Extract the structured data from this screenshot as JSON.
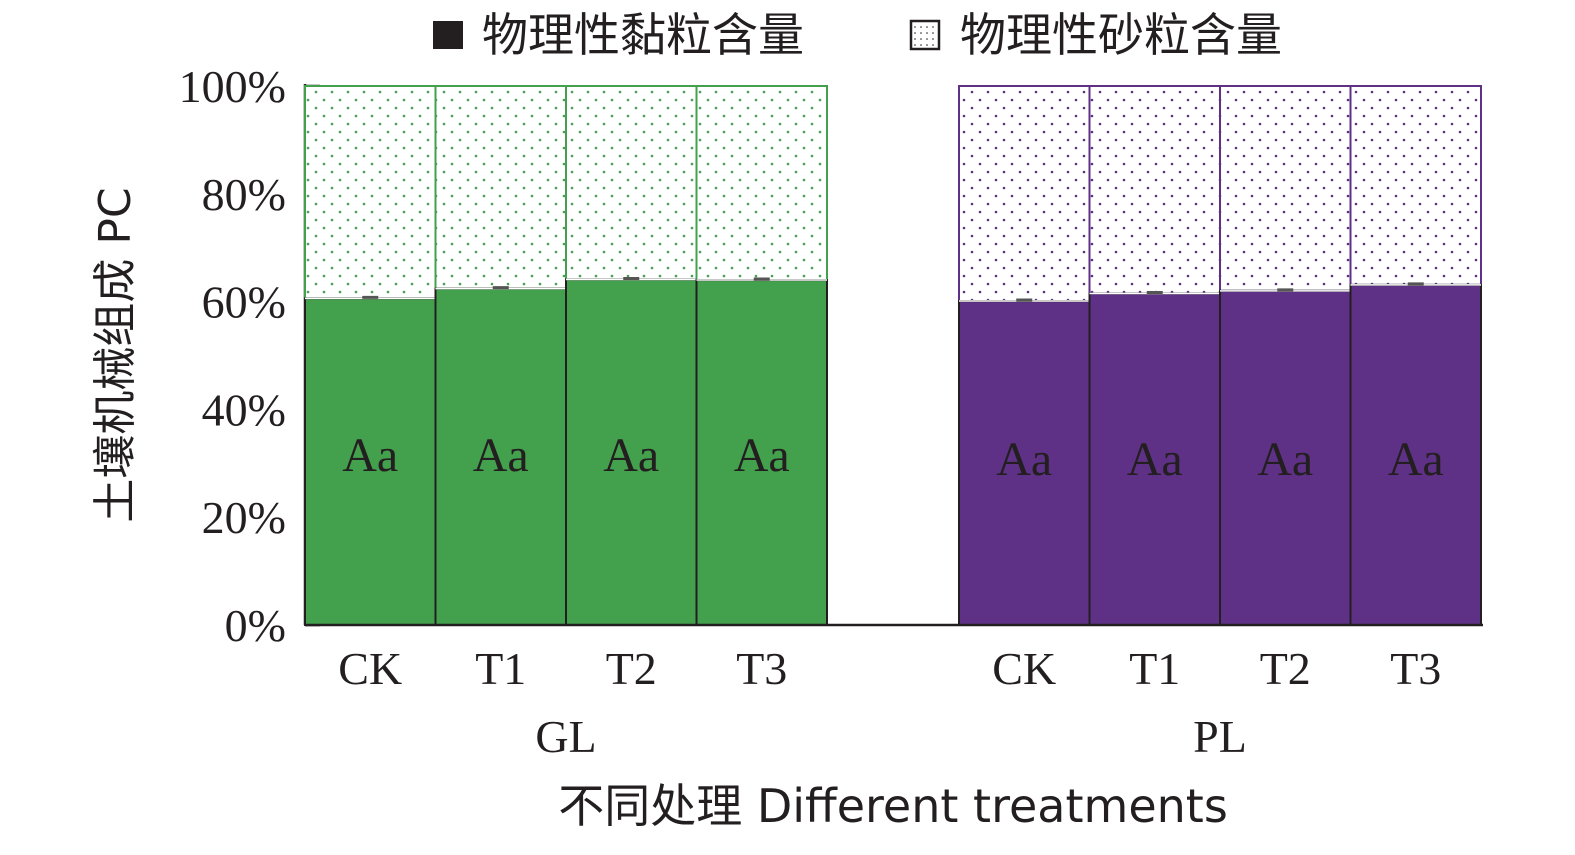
{
  "chart_data": {
    "type": "bar",
    "stacked": true,
    "percent": true,
    "ylabel": "土壤机械组成 PC",
    "xlabel": "不同处理 Different treatments",
    "ylim": [
      0,
      100
    ],
    "yticks": [
      "0%",
      "20%",
      "40%",
      "60%",
      "80%",
      "100%"
    ],
    "legend": {
      "placement": "top",
      "entries": [
        "物理性黏粒含量",
        "物理性砂粒含量"
      ]
    },
    "groups": [
      {
        "name": "GL",
        "color": "#43a04d",
        "categories": [
          "CK",
          "T1",
          "T2",
          "T3"
        ],
        "series": [
          {
            "name": "物理性黏粒含量",
            "values": [
              60.6,
              62.4,
              64.1,
              64.0
            ]
          },
          {
            "name": "物理性砂粒含量",
            "values": [
              39.4,
              37.6,
              35.9,
              36.0
            ]
          }
        ],
        "labels": [
          "Aa",
          "Aa",
          "Aa",
          "Aa"
        ]
      },
      {
        "name": "PL",
        "color": "#5e3187",
        "categories": [
          "CK",
          "T1",
          "T2",
          "T3"
        ],
        "series": [
          {
            "name": "物理性黏粒含量",
            "values": [
              60.1,
              61.5,
              62.0,
              63.1
            ]
          },
          {
            "name": "物理性砂粒含量",
            "values": [
              39.9,
              38.5,
              38.0,
              36.9
            ]
          }
        ],
        "labels": [
          "Aa",
          "Aa",
          "Aa",
          "Aa"
        ]
      }
    ]
  }
}
